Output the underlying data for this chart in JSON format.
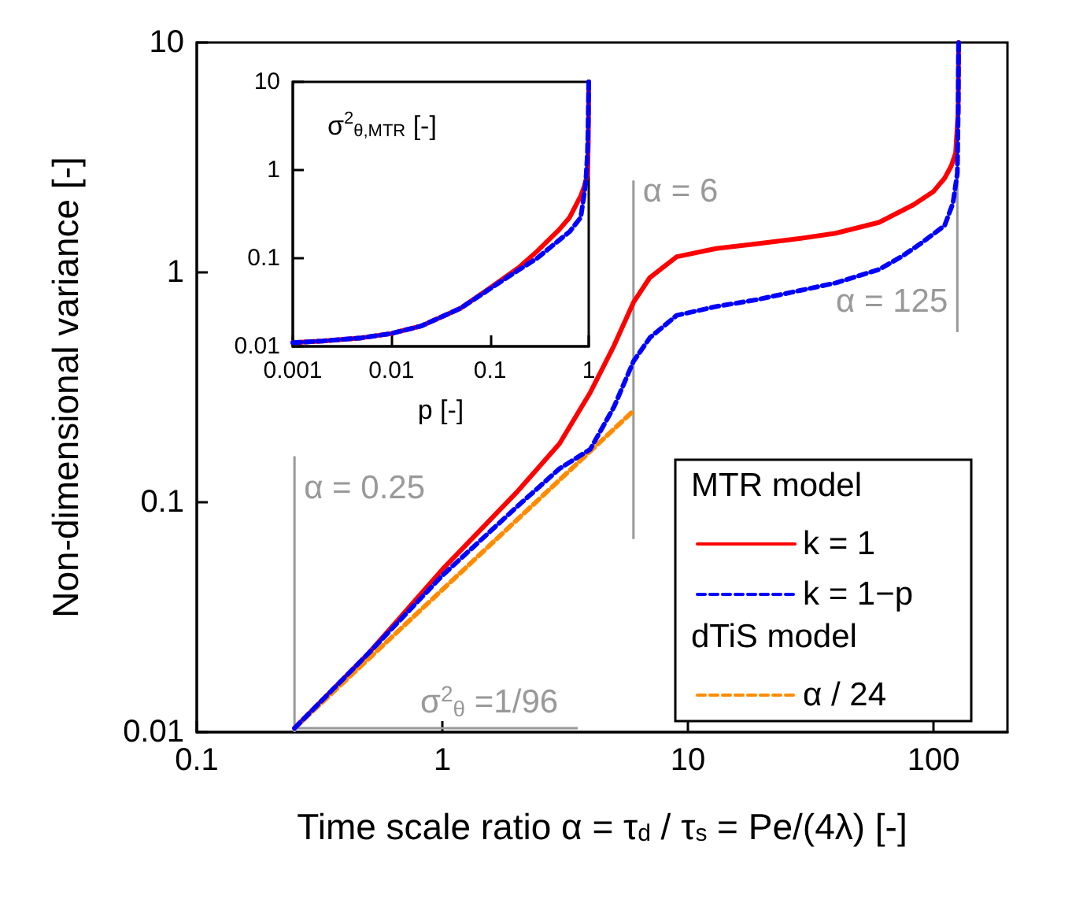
{
  "chart_data": [
    {
      "type": "line",
      "xlabel": "Time scale ratio α = τ$_{d}$ / τ$_{s}$ = Pe/(4λ) [-]",
      "ylabel": "Non-dimensional variance [-]",
      "log": "xy",
      "xlim": [
        0.1,
        200
      ],
      "ylim": [
        0.01,
        10
      ],
      "xticks": [
        0.1,
        1,
        10,
        100
      ],
      "yticks": [
        0.01,
        0.1,
        1,
        10
      ],
      "marker": "none",
      "legend": "bottom right",
      "annotations": [
        "MTR model",
        "dTiS model"
      ],
      "series": [
        {
          "name": "k = 1",
          "color": "#ff0000",
          "line_style": "solid",
          "x": [
            0.25,
            0.5,
            1,
            2,
            3,
            4,
            5,
            6,
            7,
            9,
            13,
            19,
            28,
            40,
            60,
            83,
            100,
            111,
            118,
            123,
            126,
            126.5
          ],
          "values": [
            0.0104,
            0.022,
            0.051,
            0.11,
            0.18,
            0.3,
            0.48,
            0.74,
            0.95,
            1.17,
            1.27,
            1.33,
            1.4,
            1.48,
            1.65,
            1.97,
            2.25,
            2.57,
            2.9,
            3.3,
            5,
            10
          ]
        },
        {
          "name": "k = 1−p",
          "color": "#0000ff",
          "line_style": "dashed",
          "x": [
            0.25,
            0.5,
            1,
            2,
            3,
            4,
            5,
            6,
            7,
            9,
            13,
            19,
            28,
            40,
            60,
            74,
            90,
            111,
            120,
            125,
            126,
            126.5
          ],
          "values": [
            0.0104,
            0.022,
            0.048,
            0.095,
            0.14,
            0.17,
            0.26,
            0.41,
            0.52,
            0.65,
            0.71,
            0.76,
            0.83,
            0.9,
            1.03,
            1.17,
            1.35,
            1.6,
            2.0,
            2.7,
            5,
            10
          ]
        },
        {
          "name": "α / 24",
          "color": "#ff8c00",
          "line_style": "dashed",
          "x": [
            0.25,
            6
          ],
          "values": [
            0.0104,
            0.25
          ]
        }
      ],
      "ref_lines": [
        {
          "axis": "x",
          "value": 0.25,
          "label": "α = 0.25",
          "color": "#999999"
        },
        {
          "axis": "x",
          "value": 6,
          "label": "α = 6",
          "color": "#999999"
        },
        {
          "axis": "x",
          "value": 125,
          "label": "α = 125",
          "color": "#999999"
        },
        {
          "axis": "y",
          "value": 0.0104,
          "label": "σ$^{2}$$_{θ}$ =1/96",
          "color": "#999999"
        }
      ]
    },
    {
      "type": "line",
      "xlabel": "p [-]",
      "ylabel": "σ$^{2}$$_{θ,MTR}$ [-]",
      "log": "xy",
      "xlim": [
        0.001,
        1
      ],
      "ylim": [
        0.01,
        10
      ],
      "xticks": [
        0.001,
        0.01,
        0.1,
        1
      ],
      "yticks": [
        0.01,
        0.1,
        1,
        10
      ],
      "marker": "none",
      "series": [
        {
          "color": "#ff0000",
          "line_style": "solid",
          "x": [
            0.001,
            0.002,
            0.005,
            0.01,
            0.02,
            0.05,
            0.1,
            0.2,
            0.3,
            0.5,
            0.64,
            0.83,
            0.9,
            0.97,
            0.99,
            1
          ],
          "values": [
            0.011,
            0.0115,
            0.0125,
            0.014,
            0.017,
            0.027,
            0.046,
            0.08,
            0.12,
            0.21,
            0.29,
            0.51,
            0.65,
            0.9,
            2,
            10
          ]
        },
        {
          "color": "#0000ff",
          "line_style": "dashed",
          "x": [
            0.001,
            0.002,
            0.005,
            0.01,
            0.02,
            0.05,
            0.1,
            0.2,
            0.3,
            0.49,
            0.64,
            0.83,
            0.93,
            0.97,
            0.99,
            1
          ],
          "values": [
            0.011,
            0.0115,
            0.0125,
            0.014,
            0.017,
            0.027,
            0.045,
            0.075,
            0.1,
            0.157,
            0.2,
            0.29,
            0.69,
            1.5,
            4,
            10
          ]
        }
      ]
    }
  ]
}
